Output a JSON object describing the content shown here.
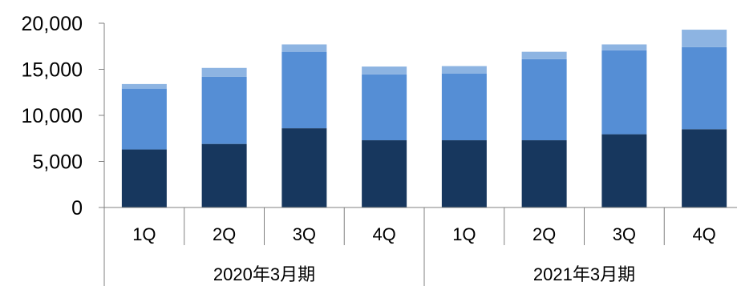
{
  "chart_data": {
    "type": "bar",
    "stacked": true,
    "categories": [
      "1Q",
      "2Q",
      "3Q",
      "4Q",
      "1Q",
      "2Q",
      "3Q",
      "4Q"
    ],
    "groups": [
      {
        "label": "2020年3月期",
        "count": 4
      },
      {
        "label": "2021年3月期",
        "count": 4
      }
    ],
    "series": [
      {
        "color": "#17375e",
        "values": [
          6300,
          6900,
          8600,
          7300,
          7300,
          7300,
          7950,
          8500
        ]
      },
      {
        "color": "#558ed5",
        "values": [
          6600,
          7300,
          8300,
          7150,
          7250,
          8800,
          9100,
          8900
        ]
      },
      {
        "color": "#8db4e2",
        "values": [
          500,
          950,
          800,
          850,
          800,
          800,
          650,
          1900
        ]
      }
    ],
    "ylim": [
      0,
      20000
    ],
    "yticks": [
      0,
      5000,
      10000,
      15000,
      20000
    ],
    "ytick_labels": [
      "0",
      "5,000",
      "10,000",
      "15,000",
      "20,000"
    ],
    "grid": false,
    "legend": "none",
    "title": "",
    "xlabel": "",
    "ylabel": ""
  }
}
